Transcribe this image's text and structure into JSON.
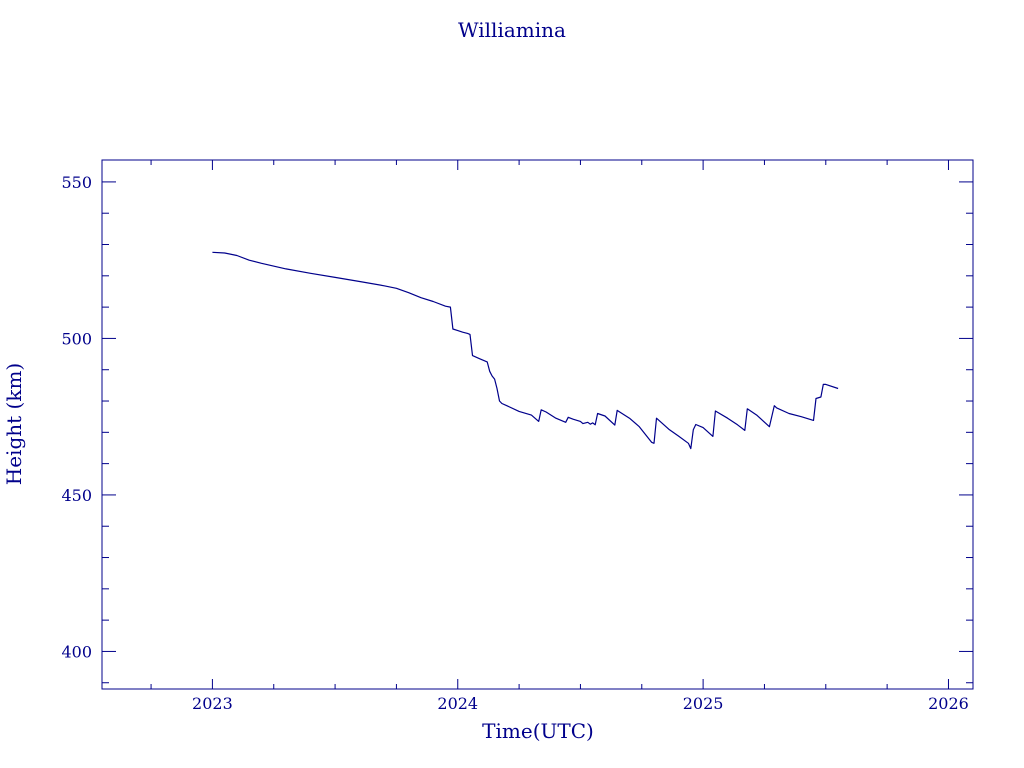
{
  "chart_data": {
    "type": "line",
    "title": "Williamina",
    "xlabel": "Time(UTC)",
    "ylabel": "Height (km)",
    "xlim": [
      2022.55,
      2026.1
    ],
    "ylim": [
      388,
      557
    ],
    "x_ticks": [
      2023,
      2024,
      2025,
      2026
    ],
    "x_tick_labels": [
      "2023",
      "2024",
      "2025",
      "2026"
    ],
    "y_ticks": [
      400,
      450,
      500,
      550
    ],
    "y_tick_labels": [
      "400",
      "450",
      "500",
      "550"
    ],
    "grid": false,
    "line_color": "#00008b",
    "series": [
      {
        "x": [
          2023.0,
          2023.05,
          2023.1,
          2023.15,
          2023.2,
          2023.3,
          2023.4,
          2023.5,
          2023.6,
          2023.7,
          2023.75,
          2023.8,
          2023.85,
          2023.9,
          2023.95,
          2023.97,
          2023.98,
          2024.0,
          2024.02,
          2024.04,
          2024.05,
          2024.06,
          2024.09,
          2024.12,
          2024.13,
          2024.14,
          2024.15,
          2024.16,
          2024.17,
          2024.18,
          2024.2,
          2024.25,
          2024.3,
          2024.33,
          2024.34,
          2024.36,
          2024.4,
          2024.44,
          2024.45,
          2024.47,
          2024.5,
          2024.51,
          2024.53,
          2024.54,
          2024.55,
          2024.56,
          2024.57,
          2024.6,
          2024.64,
          2024.65,
          2024.66,
          2024.7,
          2024.74,
          2024.79,
          2024.8,
          2024.81,
          2024.86,
          2024.9,
          2024.94,
          2024.95,
          2024.96,
          2024.97,
          2025.0,
          2025.04,
          2025.05,
          2025.1,
          2025.14,
          2025.17,
          2025.18,
          2025.22,
          2025.27,
          2025.29,
          2025.3,
          2025.35,
          2025.4,
          2025.45,
          2025.46,
          2025.48,
          2025.49,
          2025.5,
          2025.55
        ],
        "y": [
          527.5,
          527.3,
          526.5,
          525.0,
          524.0,
          522.2,
          520.8,
          519.5,
          518.2,
          516.8,
          516.0,
          514.6,
          513.0,
          511.8,
          510.3,
          510.0,
          503.0,
          502.5,
          502.0,
          501.6,
          501.3,
          494.5,
          493.5,
          492.5,
          489.5,
          488.0,
          487.0,
          484.0,
          480.0,
          479.2,
          478.5,
          476.7,
          475.5,
          473.5,
          477.2,
          476.5,
          474.5,
          473.2,
          474.8,
          474.2,
          473.5,
          472.8,
          473.2,
          472.6,
          473.0,
          472.4,
          476.0,
          475.2,
          472.3,
          477.0,
          476.5,
          474.5,
          471.8,
          466.8,
          466.5,
          474.5,
          471.0,
          468.8,
          466.5,
          464.8,
          470.8,
          472.5,
          471.5,
          468.7,
          476.8,
          474.5,
          472.4,
          470.6,
          477.5,
          475.4,
          471.8,
          478.5,
          477.8,
          476.0,
          475.0,
          473.8,
          480.8,
          481.3,
          485.3,
          485.3,
          484.0
        ]
      }
    ]
  }
}
